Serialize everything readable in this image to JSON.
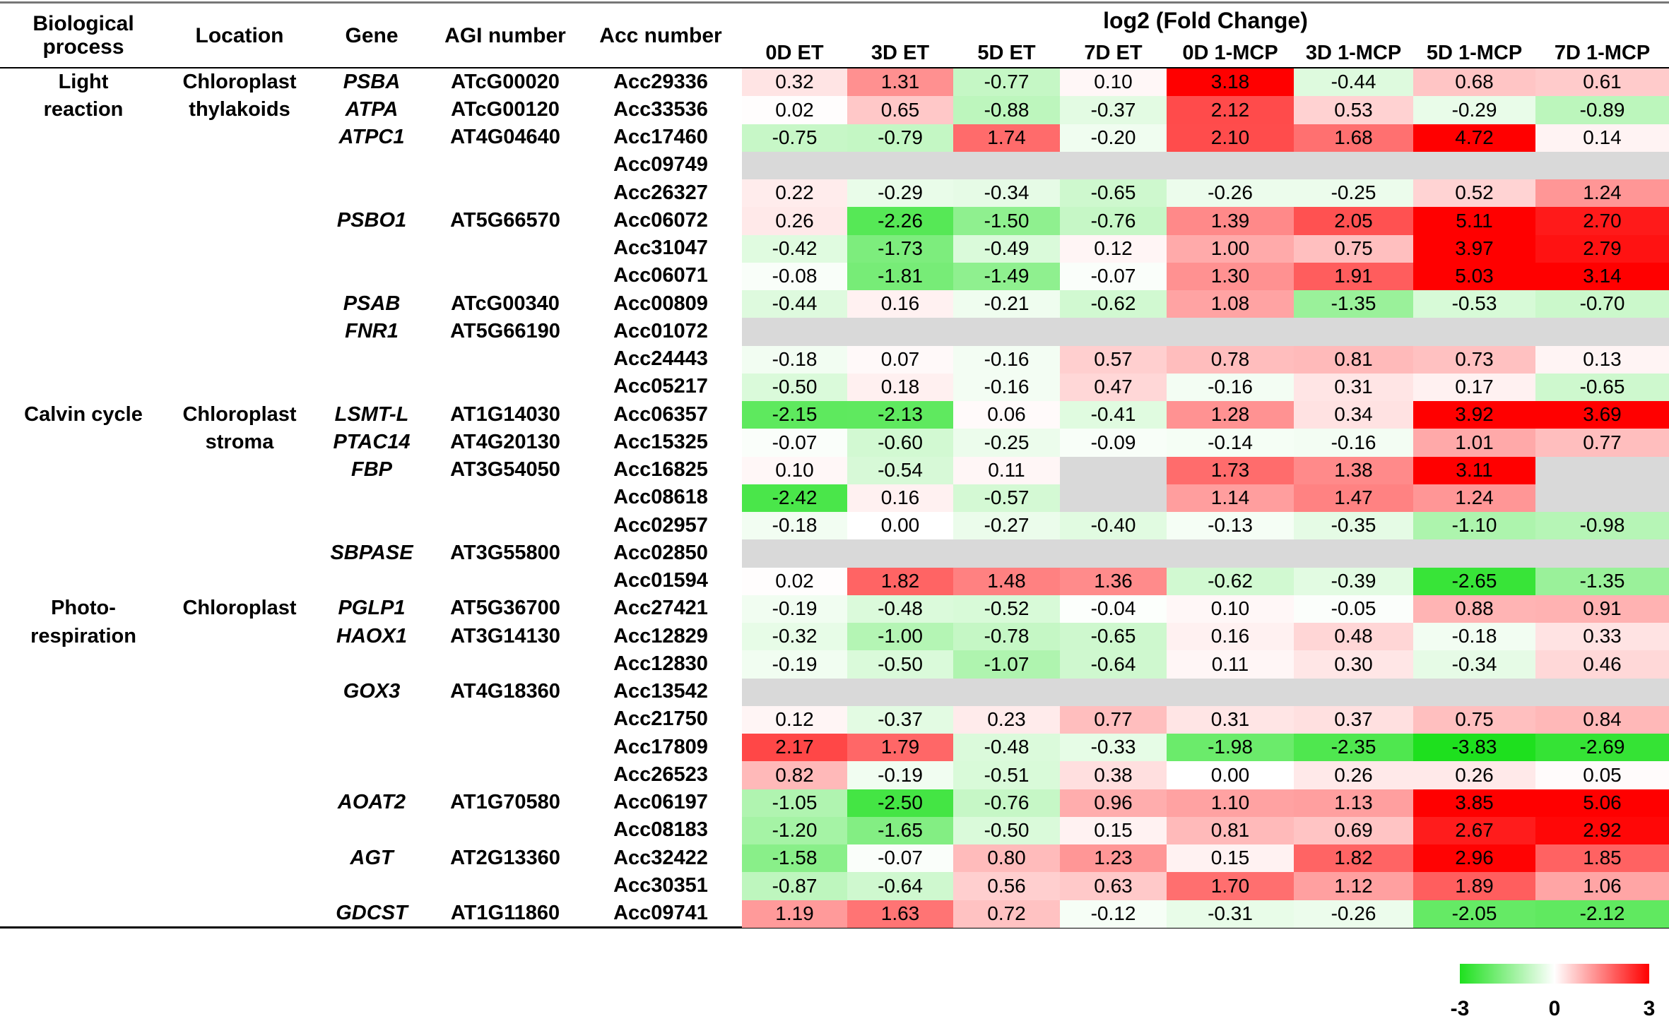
{
  "header": {
    "process": "Biological process",
    "location": "Location",
    "gene": "Gene",
    "agi": "AGI number",
    "acc": "Acc number",
    "group": "log2 (Fold Change)",
    "conditions": [
      "0D ET",
      "3D ET",
      "5D ET",
      "7D ET",
      "0D 1-MCP",
      "3D 1-MCP",
      "5D 1-MCP",
      "7D 1-MCP"
    ]
  },
  "table": {
    "rows": [
      {
        "process": "Light",
        "location": "Chloroplast",
        "gene": "PSBA",
        "agi": "ATcG00020",
        "acc": "Acc29336",
        "values": [
          "0.32",
          "1.31",
          "-0.77",
          "0.10",
          "3.18",
          "-0.44",
          "0.68",
          "0.61"
        ]
      },
      {
        "process": "reaction",
        "location": "thylakoids",
        "gene": "ATPA",
        "agi": "ATcG00120",
        "acc": "Acc33536",
        "values": [
          "0.02",
          "0.65",
          "-0.88",
          "-0.37",
          "2.12",
          "0.53",
          "-0.29",
          "-0.89"
        ]
      },
      {
        "process": null,
        "location": null,
        "gene": "ATPC1",
        "agi": "AT4G04640",
        "acc": "Acc17460",
        "values": [
          "-0.75",
          "-0.79",
          "1.74",
          "-0.20",
          "2.10",
          "1.68",
          "4.72",
          "0.14"
        ]
      },
      {
        "process": null,
        "location": null,
        "gene": null,
        "agi": null,
        "acc": "Acc09749",
        "values": [
          null,
          null,
          null,
          null,
          null,
          null,
          null,
          null
        ]
      },
      {
        "process": null,
        "location": null,
        "gene": null,
        "agi": null,
        "acc": "Acc26327",
        "values": [
          "0.22",
          "-0.29",
          "-0.34",
          "-0.65",
          "-0.26",
          "-0.25",
          "0.52",
          "1.24"
        ]
      },
      {
        "process": null,
        "location": null,
        "gene": "PSBO1",
        "agi": "AT5G66570",
        "acc": "Acc06072",
        "values": [
          "0.26",
          "-2.26",
          "-1.50",
          "-0.76",
          "1.39",
          "2.05",
          "5.11",
          "2.70"
        ]
      },
      {
        "process": null,
        "location": null,
        "gene": null,
        "agi": null,
        "acc": "Acc31047",
        "values": [
          "-0.42",
          "-1.73",
          "-0.49",
          "0.12",
          "1.00",
          "0.75",
          "3.97",
          "2.79"
        ]
      },
      {
        "process": null,
        "location": null,
        "gene": null,
        "agi": null,
        "acc": "Acc06071",
        "values": [
          "-0.08",
          "-1.81",
          "-1.49",
          "-0.07",
          "1.30",
          "1.91",
          "5.03",
          "3.14"
        ]
      },
      {
        "process": null,
        "location": null,
        "gene": "PSAB",
        "agi": "ATcG00340",
        "acc": "Acc00809",
        "values": [
          "-0.44",
          "0.16",
          "-0.21",
          "-0.62",
          "1.08",
          "-1.35",
          "-0.53",
          "-0.70"
        ]
      },
      {
        "process": null,
        "location": null,
        "gene": "FNR1",
        "agi": "AT5G66190",
        "acc": "Acc01072",
        "values": [
          null,
          null,
          null,
          null,
          null,
          null,
          null,
          null
        ]
      },
      {
        "process": null,
        "location": null,
        "gene": null,
        "agi": null,
        "acc": "Acc24443",
        "values": [
          "-0.18",
          "0.07",
          "-0.16",
          "0.57",
          "0.78",
          "0.81",
          "0.73",
          "0.13"
        ]
      },
      {
        "process": null,
        "location": null,
        "gene": null,
        "agi": null,
        "acc": "Acc05217",
        "values": [
          "-0.50",
          "0.18",
          "-0.16",
          "0.47",
          "-0.16",
          "0.31",
          "0.17",
          "-0.65"
        ]
      },
      {
        "process": "Calvin cycle",
        "location": "Chloroplast",
        "gene": "LSMT-L",
        "agi": "AT1G14030",
        "acc": "Acc06357",
        "values": [
          "-2.15",
          "-2.13",
          "0.06",
          "-0.41",
          "1.28",
          "0.34",
          "3.92",
          "3.69"
        ]
      },
      {
        "process": null,
        "location": "stroma",
        "gene": "PTAC14",
        "agi": "AT4G20130",
        "acc": "Acc15325",
        "values": [
          "-0.07",
          "-0.60",
          "-0.25",
          "-0.09",
          "-0.14",
          "-0.16",
          "1.01",
          "0.77"
        ]
      },
      {
        "process": null,
        "location": null,
        "gene": "FBP",
        "agi": "AT3G54050",
        "acc": "Acc16825",
        "values": [
          "0.10",
          "-0.54",
          "0.11",
          null,
          "1.73",
          "1.38",
          "3.11",
          null
        ]
      },
      {
        "process": null,
        "location": null,
        "gene": null,
        "agi": null,
        "acc": "Acc08618",
        "values": [
          "-2.42",
          "0.16",
          "-0.57",
          null,
          "1.14",
          "1.47",
          "1.24",
          null
        ]
      },
      {
        "process": null,
        "location": null,
        "gene": null,
        "agi": null,
        "acc": "Acc02957",
        "values": [
          "-0.18",
          "0.00",
          "-0.27",
          "-0.40",
          "-0.13",
          "-0.35",
          "-1.10",
          "-0.98"
        ]
      },
      {
        "process": null,
        "location": null,
        "gene": "SBPASE",
        "agi": "AT3G55800",
        "acc": "Acc02850",
        "values": [
          null,
          null,
          null,
          null,
          null,
          null,
          null,
          null
        ]
      },
      {
        "process": null,
        "location": null,
        "gene": null,
        "agi": null,
        "acc": "Acc01594",
        "values": [
          "0.02",
          "1.82",
          "1.48",
          "1.36",
          "-0.62",
          "-0.39",
          "-2.65",
          "-1.35"
        ]
      },
      {
        "process": "Photo-",
        "location": "Chloroplast",
        "gene": "PGLP1",
        "agi": "AT5G36700",
        "acc": "Acc27421",
        "values": [
          "-0.19",
          "-0.48",
          "-0.52",
          "-0.04",
          "0.10",
          "-0.05",
          "0.88",
          "0.91"
        ]
      },
      {
        "process": "respiration",
        "location": null,
        "gene": "HAOX1",
        "agi": "AT3G14130",
        "acc": "Acc12829",
        "values": [
          "-0.32",
          "-1.00",
          "-0.78",
          "-0.65",
          "0.16",
          "0.48",
          "-0.18",
          "0.33"
        ]
      },
      {
        "process": null,
        "location": null,
        "gene": null,
        "agi": null,
        "acc": "Acc12830",
        "values": [
          "-0.19",
          "-0.50",
          "-1.07",
          "-0.64",
          "0.11",
          "0.30",
          "-0.34",
          "0.46"
        ]
      },
      {
        "process": null,
        "location": null,
        "gene": "GOX3",
        "agi": "AT4G18360",
        "acc": "Acc13542",
        "values": [
          null,
          null,
          null,
          null,
          null,
          null,
          null,
          null
        ]
      },
      {
        "process": null,
        "location": null,
        "gene": null,
        "agi": null,
        "acc": "Acc21750",
        "values": [
          "0.12",
          "-0.37",
          "0.23",
          "0.77",
          "0.31",
          "0.37",
          "0.75",
          "0.84"
        ]
      },
      {
        "process": null,
        "location": null,
        "gene": null,
        "agi": null,
        "acc": "Acc17809",
        "values": [
          "2.17",
          "1.79",
          "-0.48",
          "-0.33",
          "-1.98",
          "-2.35",
          "-3.83",
          "-2.69"
        ]
      },
      {
        "process": null,
        "location": null,
        "gene": null,
        "agi": null,
        "acc": "Acc26523",
        "values": [
          "0.82",
          "-0.19",
          "-0.51",
          "0.38",
          "0.00",
          "0.26",
          "0.26",
          "0.05"
        ]
      },
      {
        "process": null,
        "location": null,
        "gene": "AOAT2",
        "agi": "AT1G70580",
        "acc": "Acc06197",
        "values": [
          "-1.05",
          "-2.50",
          "-0.76",
          "0.96",
          "1.10",
          "1.13",
          "3.85",
          "5.06"
        ]
      },
      {
        "process": null,
        "location": null,
        "gene": null,
        "agi": null,
        "acc": "Acc08183",
        "values": [
          "-1.20",
          "-1.65",
          "-0.50",
          "0.15",
          "0.81",
          "0.69",
          "2.67",
          "2.92"
        ]
      },
      {
        "process": null,
        "location": null,
        "gene": "AGT",
        "agi": "AT2G13360",
        "acc": "Acc32422",
        "values": [
          "-1.58",
          "-0.07",
          "0.80",
          "1.23",
          "0.15",
          "1.82",
          "2.96",
          "1.85"
        ]
      },
      {
        "process": null,
        "location": null,
        "gene": null,
        "agi": null,
        "acc": "Acc30351",
        "values": [
          "-0.87",
          "-0.64",
          "0.56",
          "0.63",
          "1.70",
          "1.12",
          "1.89",
          "1.06"
        ]
      },
      {
        "process": null,
        "location": null,
        "gene": "GDCST",
        "agi": "AT1G11860",
        "acc": "Acc09741",
        "values": [
          "1.19",
          "1.63",
          "0.72",
          "-0.12",
          "-0.31",
          "-0.26",
          "-2.05",
          "-2.12"
        ]
      }
    ]
  },
  "color_scale": {
    "min": -3,
    "mid": 0,
    "max": 3,
    "low_color": "#1ee01e",
    "mid_color": "#ffffff",
    "high_color": "#ff0000",
    "missing_color": "#d9d9d9"
  }
}
